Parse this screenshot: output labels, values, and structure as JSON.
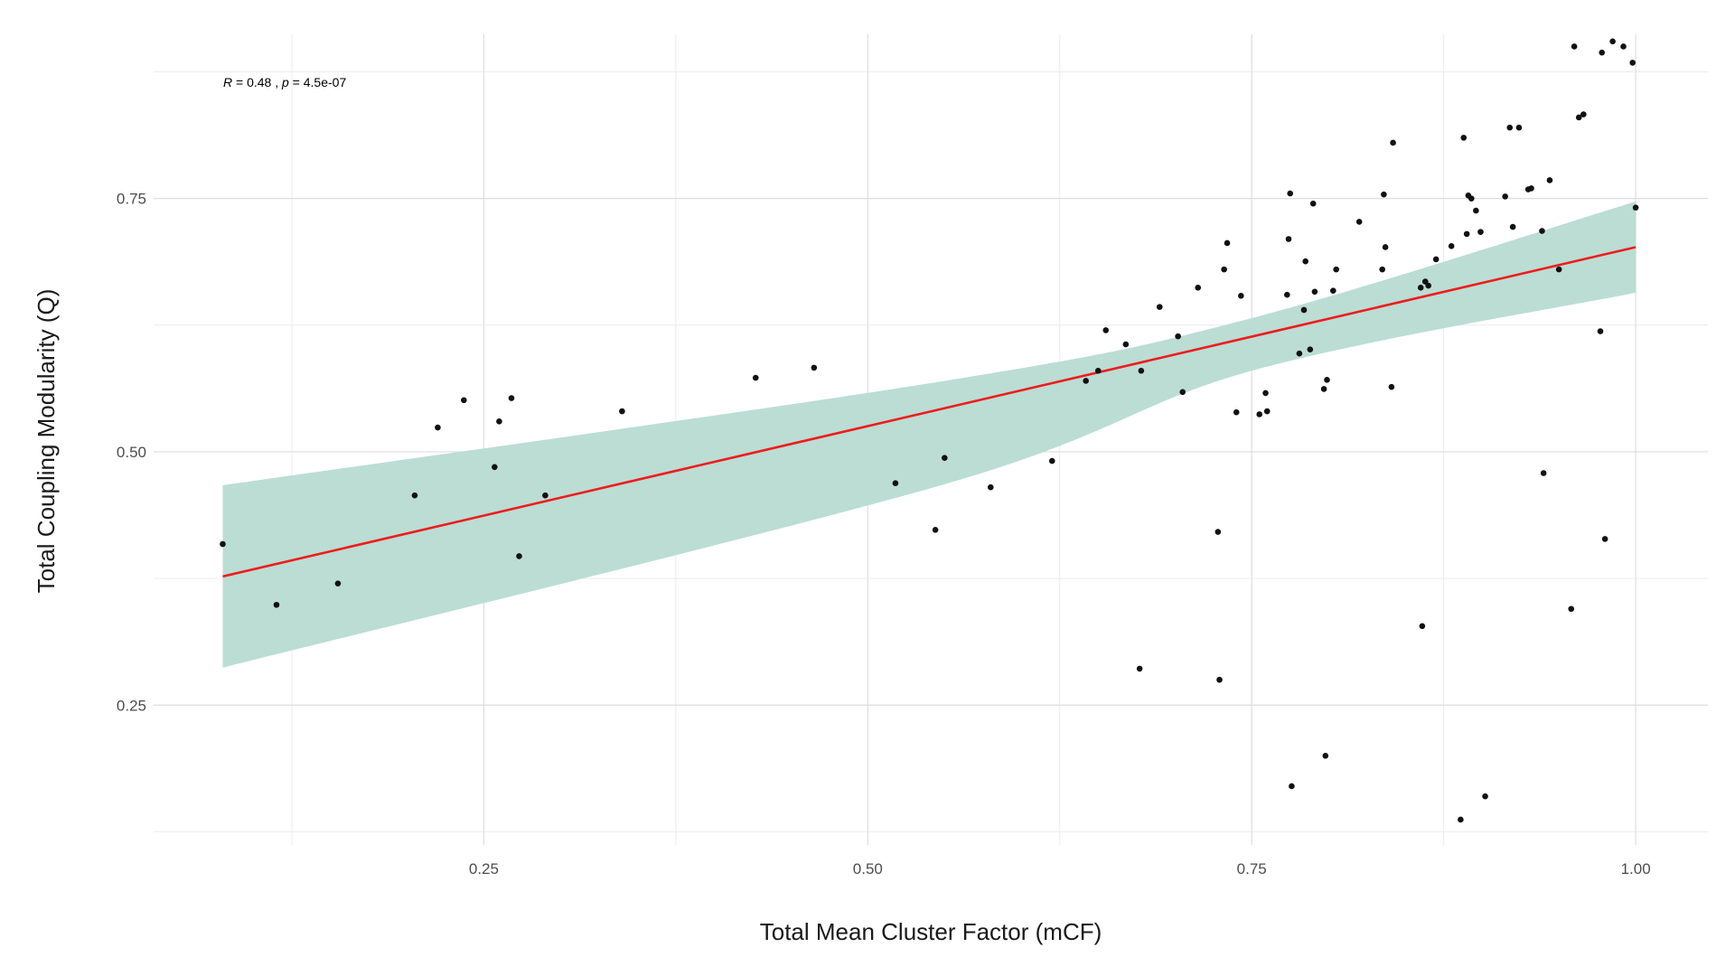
{
  "chart_data": {
    "type": "scatter",
    "xlabel": "Total Mean Cluster Factor (mCF)",
    "ylabel": "Total Coupling Modularity (Q)",
    "x_ticks": [
      0.25,
      0.5,
      0.75,
      1.0
    ],
    "x_tick_labels": [
      "0.25",
      "0.50",
      "0.75",
      "1.00"
    ],
    "y_ticks": [
      0.25,
      0.5,
      0.75
    ],
    "y_tick_labels": [
      "0.25",
      "0.50",
      "0.75"
    ],
    "xlim": [
      0.035,
      1.047
    ],
    "ylim": [
      0.112,
      0.912
    ],
    "grid": true,
    "annotation": {
      "r_label": "R",
      "r_value": " = 0.48 , ",
      "p_label": "p",
      "p_value": " = 4.5e-07"
    },
    "regression": {
      "x": [
        0.08,
        1.0
      ],
      "fit": [
        0.377,
        0.702
      ],
      "ci_lower": [
        0.287,
        0.657
      ],
      "ci_upper": [
        0.467,
        0.747
      ],
      "ci_knot_x": [
        0.08,
        0.55,
        0.75,
        1.0
      ],
      "ci_lower_knots": [
        0.287,
        0.468,
        0.58,
        0.657
      ],
      "ci_upper_knots": [
        0.467,
        0.57,
        0.632,
        0.747
      ],
      "line_color": "#ee1c1c",
      "band_color": "#bbddd4"
    },
    "point_color": "#111111",
    "points": [
      [
        0.08,
        0.409
      ],
      [
        0.115,
        0.349
      ],
      [
        0.155,
        0.37
      ],
      [
        0.205,
        0.457
      ],
      [
        0.22,
        0.524
      ],
      [
        0.237,
        0.551
      ],
      [
        0.257,
        0.485
      ],
      [
        0.26,
        0.53
      ],
      [
        0.268,
        0.553
      ],
      [
        0.273,
        0.397
      ],
      [
        0.29,
        0.457
      ],
      [
        0.34,
        0.54
      ],
      [
        0.427,
        0.573
      ],
      [
        0.465,
        0.583
      ],
      [
        0.518,
        0.469
      ],
      [
        0.544,
        0.423
      ],
      [
        0.55,
        0.494
      ],
      [
        0.58,
        0.465
      ],
      [
        0.62,
        0.491
      ],
      [
        0.642,
        0.57
      ],
      [
        0.65,
        0.58
      ],
      [
        0.655,
        0.62
      ],
      [
        0.668,
        0.606
      ],
      [
        0.677,
        0.286
      ],
      [
        0.678,
        0.58
      ],
      [
        0.69,
        0.643
      ],
      [
        0.702,
        0.614
      ],
      [
        0.705,
        0.559
      ],
      [
        0.715,
        0.662
      ],
      [
        0.728,
        0.421
      ],
      [
        0.729,
        0.275
      ],
      [
        0.732,
        0.68
      ],
      [
        0.734,
        0.706
      ],
      [
        0.74,
        0.539
      ],
      [
        0.743,
        0.654
      ],
      [
        0.755,
        0.537
      ],
      [
        0.759,
        0.558
      ],
      [
        0.76,
        0.54
      ],
      [
        0.773,
        0.655
      ],
      [
        0.774,
        0.71
      ],
      [
        0.775,
        0.755
      ],
      [
        0.776,
        0.17
      ],
      [
        0.781,
        0.597
      ],
      [
        0.784,
        0.64
      ],
      [
        0.785,
        0.688
      ],
      [
        0.788,
        0.601
      ],
      [
        0.79,
        0.745
      ],
      [
        0.791,
        0.658
      ],
      [
        0.797,
        0.562
      ],
      [
        0.798,
        0.2
      ],
      [
        0.799,
        0.571
      ],
      [
        0.803,
        0.659
      ],
      [
        0.805,
        0.68
      ],
      [
        0.82,
        0.727
      ],
      [
        0.835,
        0.68
      ],
      [
        0.836,
        0.754
      ],
      [
        0.837,
        0.702
      ],
      [
        0.841,
        0.564
      ],
      [
        0.842,
        0.805
      ],
      [
        0.86,
        0.662
      ],
      [
        0.861,
        0.328
      ],
      [
        0.863,
        0.668
      ],
      [
        0.865,
        0.664
      ],
      [
        0.87,
        0.69
      ],
      [
        0.88,
        0.703
      ],
      [
        0.886,
        0.137
      ],
      [
        0.888,
        0.81
      ],
      [
        0.89,
        0.715
      ],
      [
        0.891,
        0.753
      ],
      [
        0.893,
        0.75
      ],
      [
        0.896,
        0.738
      ],
      [
        0.899,
        0.717
      ],
      [
        0.902,
        0.16
      ],
      [
        0.915,
        0.752
      ],
      [
        0.918,
        0.82
      ],
      [
        0.92,
        0.722
      ],
      [
        0.924,
        0.82
      ],
      [
        0.93,
        0.759
      ],
      [
        0.932,
        0.76
      ],
      [
        0.939,
        0.718
      ],
      [
        0.94,
        0.479
      ],
      [
        0.944,
        0.768
      ],
      [
        0.95,
        0.68
      ],
      [
        0.958,
        0.345
      ],
      [
        0.96,
        0.9
      ],
      [
        0.963,
        0.83
      ],
      [
        0.966,
        0.833
      ],
      [
        0.977,
        0.619
      ],
      [
        0.978,
        0.894
      ],
      [
        0.98,
        0.414
      ],
      [
        0.985,
        0.905
      ],
      [
        0.992,
        0.9
      ],
      [
        0.998,
        0.884
      ],
      [
        1.0,
        0.741
      ]
    ]
  }
}
